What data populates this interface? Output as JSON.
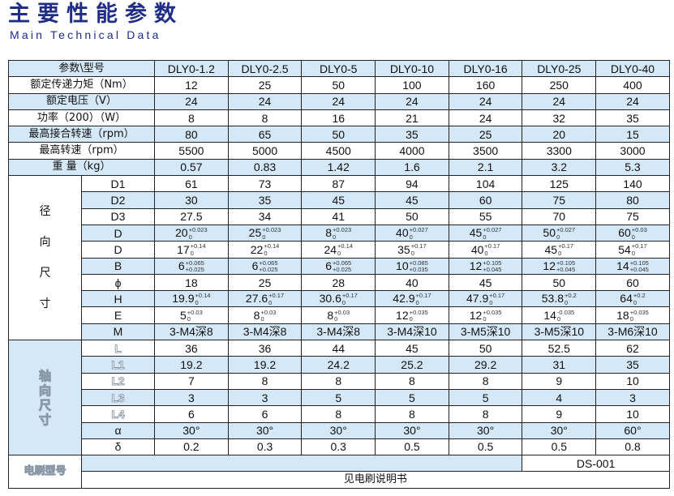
{
  "title": "主要性能参数",
  "subtitle": "Main Technical Data",
  "table": {
    "corner": "参数\\型号",
    "models": [
      "DLY0-1.2",
      "DLY0-2.5",
      "DLY0-5",
      "DLY0-10",
      "DLY0-16",
      "DLY0-25",
      "DLY0-40"
    ],
    "performance": [
      {
        "label": "额定传递力矩（Nm）",
        "values": [
          "12",
          "25",
          "50",
          "100",
          "160",
          "250",
          "400"
        ]
      },
      {
        "label": "额定电压（V）",
        "values": [
          "24",
          "24",
          "24",
          "24",
          "24",
          "24",
          "24"
        ]
      },
      {
        "label": "功率（200）（W）",
        "values": [
          "8",
          "8",
          "16",
          "21",
          "24",
          "32",
          "35"
        ]
      },
      {
        "label": "最高接合转速（rpm）",
        "values": [
          "80",
          "65",
          "50",
          "35",
          "25",
          "20",
          "15"
        ]
      },
      {
        "label": "最高转速（rpm）",
        "values": [
          "5500",
          "5000",
          "4500",
          "4000",
          "3500",
          "3300",
          "3000"
        ]
      },
      {
        "label": "重 量（kg）",
        "values": [
          "0.57",
          "0.83",
          "1.42",
          "1.6",
          "2.1",
          "3.2",
          "5.3"
        ]
      }
    ],
    "radial_group": [
      "径",
      "向",
      "尺",
      "寸"
    ],
    "radial": [
      {
        "label": "D1",
        "values": [
          {
            "v": "61"
          },
          {
            "v": "73"
          },
          {
            "v": "87"
          },
          {
            "v": "94"
          },
          {
            "v": "104"
          },
          {
            "v": "125"
          },
          {
            "v": "140"
          }
        ]
      },
      {
        "label": "D2",
        "values": [
          {
            "v": "30"
          },
          {
            "v": "35"
          },
          {
            "v": "45"
          },
          {
            "v": "45"
          },
          {
            "v": "60"
          },
          {
            "v": "75"
          },
          {
            "v": "80"
          }
        ]
      },
      {
        "label": "D3",
        "values": [
          {
            "v": "27.5"
          },
          {
            "v": "34"
          },
          {
            "v": "41"
          },
          {
            "v": "50"
          },
          {
            "v": "55"
          },
          {
            "v": "70"
          },
          {
            "v": "75"
          }
        ]
      },
      {
        "label": "D",
        "values": [
          {
            "v": "20",
            "up": "+0.023",
            "lo": "0"
          },
          {
            "v": "25",
            "up": "+0.023",
            "lo": "0"
          },
          {
            "v": "8",
            "up": "+0.023",
            "lo": "0"
          },
          {
            "v": "40",
            "up": "+0.027",
            "lo": "0"
          },
          {
            "v": "45",
            "up": "+0.027",
            "lo": "0"
          },
          {
            "v": "50",
            "up": "+0.027",
            "lo": "0"
          },
          {
            "v": "60",
            "up": "+0.03",
            "lo": "0"
          }
        ]
      },
      {
        "label": "D",
        "values": [
          {
            "v": "17",
            "up": "+0.14",
            "lo": "0"
          },
          {
            "v": "22",
            "up": "+0.14",
            "lo": "0"
          },
          {
            "v": "24",
            "up": "+0.14",
            "lo": "0"
          },
          {
            "v": "35",
            "up": "+0.17",
            "lo": "0"
          },
          {
            "v": "40",
            "up": "+0.17",
            "lo": "0"
          },
          {
            "v": "45",
            "up": "+0.17",
            "lo": "0"
          },
          {
            "v": "54",
            "up": "+0.17",
            "lo": "0"
          }
        ]
      },
      {
        "label": "B",
        "values": [
          {
            "v": "6",
            "up": "+0.065",
            "lo": "+0.025"
          },
          {
            "v": "6",
            "up": "+0.065",
            "lo": "+0.025"
          },
          {
            "v": "6",
            "up": "+0.065",
            "lo": "+0.025"
          },
          {
            "v": "10",
            "up": "+0.085",
            "lo": "+0.035"
          },
          {
            "v": "12",
            "up": "+0.105",
            "lo": "+0.045"
          },
          {
            "v": "12",
            "up": "+0.105",
            "lo": "+0.045"
          },
          {
            "v": "14",
            "up": "+0.105",
            "lo": "+0.045"
          }
        ]
      },
      {
        "label": "ϕ",
        "values": [
          {
            "v": "18"
          },
          {
            "v": "25"
          },
          {
            "v": "28"
          },
          {
            "v": "40"
          },
          {
            "v": "45"
          },
          {
            "v": "50"
          },
          {
            "v": "60"
          }
        ]
      },
      {
        "label": "H",
        "values": [
          {
            "v": "19.9",
            "up": "+0.14",
            "lo": "0"
          },
          {
            "v": "27.6",
            "up": "+0.17",
            "lo": "0"
          },
          {
            "v": "30.6",
            "up": "+0.17",
            "lo": "0"
          },
          {
            "v": "42.9",
            "up": "+0.17",
            "lo": "0"
          },
          {
            "v": "47.9",
            "up": "+0.17",
            "lo": "0"
          },
          {
            "v": "53.8",
            "up": "+0.2",
            "lo": "0"
          },
          {
            "v": "64",
            "up": "+0.2",
            "lo": "0"
          }
        ]
      },
      {
        "label": "E",
        "values": [
          {
            "v": "5",
            "up": "+0.03",
            "lo": "0"
          },
          {
            "v": "8",
            "up": "+0.03",
            "lo": "0"
          },
          {
            "v": "8",
            "up": "+0.03",
            "lo": "0"
          },
          {
            "v": "12",
            "up": "+0.035",
            "lo": "0"
          },
          {
            "v": "12",
            "up": "+0.035",
            "lo": "0"
          },
          {
            "v": "14",
            "up": "-0.035",
            "lo": "0"
          },
          {
            "v": "18",
            "up": "+0.035",
            "lo": "0"
          }
        ]
      },
      {
        "label": "M",
        "values": [
          {
            "v": "3-M4深8"
          },
          {
            "v": "3-M4深8"
          },
          {
            "v": "3-M4深8"
          },
          {
            "v": "3-M4深10"
          },
          {
            "v": "3-M5深10"
          },
          {
            "v": "3-M5深10"
          },
          {
            "v": "3-M6深10"
          }
        ]
      }
    ],
    "axial_group": [
      "轴",
      "向",
      "尺",
      "寸"
    ],
    "axial": [
      {
        "label": "L",
        "values": [
          "36",
          "36",
          "44",
          "45",
          "50",
          "52.5",
          "62"
        ]
      },
      {
        "label": "L1",
        "values": [
          "19.2",
          "19.2",
          "24.2",
          "25.2",
          "29.2",
          "31",
          "35"
        ]
      },
      {
        "label": "L2",
        "values": [
          "7",
          "8",
          "8",
          "8",
          "8",
          "9",
          "10"
        ]
      },
      {
        "label": "L3",
        "values": [
          "3",
          "3",
          "5",
          "5",
          "5",
          "4",
          "3"
        ]
      },
      {
        "label": "L4",
        "values": [
          "6",
          "6",
          "8",
          "8",
          "8",
          "9",
          "10"
        ]
      },
      {
        "label": "α",
        "values": [
          "30°",
          "30°",
          "30°",
          "30°",
          "30°",
          "30°",
          "60°"
        ]
      },
      {
        "label": "δ",
        "values": [
          "0.2",
          "0.3",
          "0.3",
          "0.5",
          "0.5",
          "0.5",
          "0.8"
        ]
      }
    ],
    "brush_label": "电刷型号",
    "brush_model": "DS-001",
    "brush_note": "见电刷说明书"
  },
  "colors": {
    "title": "#1f2d86",
    "row_highlight": "#d4e8f7"
  }
}
